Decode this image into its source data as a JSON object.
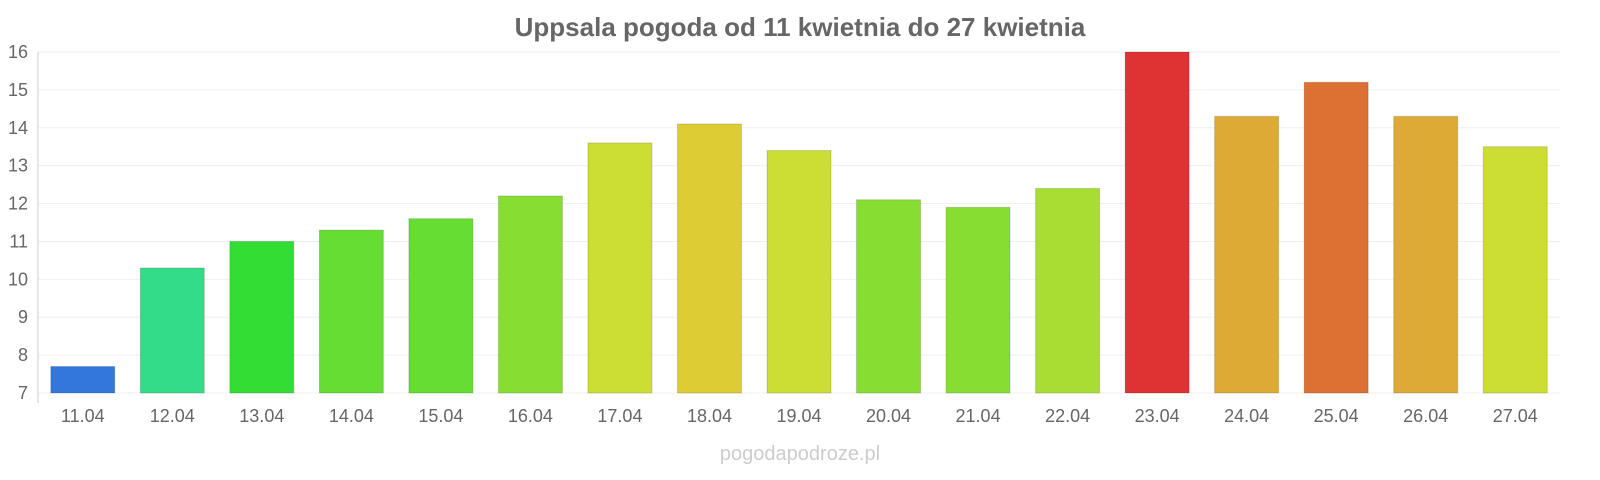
{
  "chart_data": {
    "type": "bar",
    "title": "Uppsala pogoda od 11 kwietnia do 27 kwietnia",
    "xlabel": "",
    "ylabel": "",
    "ylim": [
      7,
      16
    ],
    "yticks": [
      7,
      8,
      9,
      10,
      11,
      12,
      13,
      14,
      15,
      16
    ],
    "grid": true,
    "categories": [
      "11.04",
      "12.04",
      "13.04",
      "14.04",
      "15.04",
      "16.04",
      "17.04",
      "18.04",
      "19.04",
      "20.04",
      "21.04",
      "22.04",
      "23.04",
      "24.04",
      "25.04",
      "26.04",
      "27.04"
    ],
    "values": [
      7.7,
      10.3,
      11.0,
      11.3,
      11.6,
      12.2,
      13.6,
      14.1,
      13.4,
      12.1,
      11.9,
      12.4,
      16.0,
      14.3,
      15.2,
      14.3,
      13.5
    ],
    "colors": [
      "#3377dd",
      "#33dd88",
      "#33dd33",
      "#66dd33",
      "#66dd33",
      "#88dd33",
      "#ccdd33",
      "#ddcc33",
      "#ccdd33",
      "#88dd33",
      "#88dd33",
      "#aadd33",
      "#dd3333",
      "#ddaa33",
      "#dd7033",
      "#ddaa33",
      "#ccdd33"
    ]
  },
  "watermark": "pogodapodroze.pl"
}
